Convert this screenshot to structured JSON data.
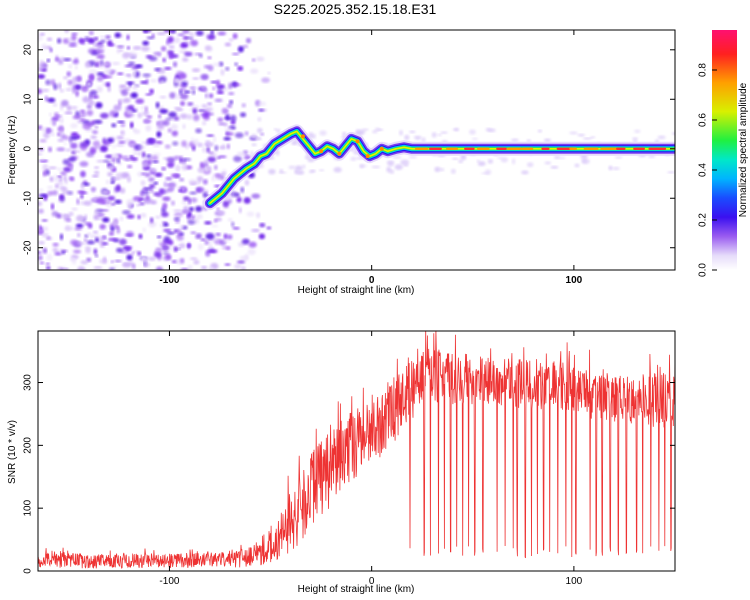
{
  "title": "S225.2025.352.15.18.E31",
  "colors": {
    "snr_line": "#ee3333",
    "noise_purple": "#8a44ee",
    "colormap": [
      "#f2eefc",
      "#cfb8f5",
      "#a070f0",
      "#5a10e0",
      "#1a1af0",
      "#00a8ff",
      "#00e0d8",
      "#30f040",
      "#e8f000",
      "#ff9a00",
      "#ff2020",
      "#ff1070"
    ]
  },
  "chart_data": [
    {
      "type": "heatmap",
      "name": "spectrogram",
      "xlabel": "Height of straight line (km)",
      "ylabel": "Frequency (Hz)",
      "xlim": [
        -165,
        150
      ],
      "ylim": [
        -24.5,
        24
      ],
      "xticks": [
        -100,
        0,
        100
      ],
      "yticks": [
        -20,
        -10,
        0,
        10,
        20
      ],
      "colorbar": {
        "label": "Normalized spectral amplitude",
        "range": [
          0,
          0.96
        ],
        "ticks": [
          0.0,
          0.2,
          0.4,
          0.6,
          0.8
        ]
      },
      "ridge": {
        "x": [
          -80,
          -74,
          -68,
          -62,
          -58,
          -55,
          -52,
          -48,
          -44,
          -40,
          -37,
          -34,
          -31,
          -28,
          -25,
          -22,
          -19,
          -16,
          -13,
          -10,
          -7,
          -4,
          -1,
          2,
          5,
          8,
          12,
          16,
          20,
          150
        ],
        "freq": [
          -11,
          -9,
          -6,
          -4,
          -3,
          -1.5,
          -1,
          1,
          2,
          3,
          3.5,
          2,
          0.5,
          -1,
          -0.5,
          0.5,
          0,
          -1,
          0.5,
          2,
          1.5,
          -0.5,
          -1.5,
          -1,
          0,
          -0.5,
          0,
          0.3,
          0,
          0
        ]
      }
    },
    {
      "type": "line",
      "name": "snr",
      "xlabel": "Height of straight line (km)",
      "ylabel": "SNR (10 * v/v)",
      "xlim": [
        -165,
        150
      ],
      "ylim": [
        0,
        382
      ],
      "xticks": [
        -100,
        0,
        100
      ],
      "yticks": [
        0,
        100,
        200,
        300
      ],
      "series": [
        {
          "name": "SNR",
          "x": [
            -165,
            -140,
            -110,
            -80,
            -60,
            -50,
            -42,
            -36,
            -30,
            -24,
            -18,
            -12,
            -6,
            0,
            5,
            10,
            15,
            20,
            25,
            30,
            40,
            50,
            60,
            70,
            80,
            90,
            100,
            110,
            120,
            130,
            140,
            150
          ],
          "mean": [
            18,
            16,
            16,
            17,
            22,
            40,
            70,
            95,
            130,
            150,
            170,
            195,
            210,
            215,
            230,
            250,
            270,
            295,
            310,
            312,
            305,
            300,
            305,
            300,
            295,
            300,
            290,
            280,
            275,
            270,
            270,
            275
          ],
          "spread": [
            12,
            12,
            12,
            12,
            16,
            28,
            45,
            55,
            60,
            60,
            60,
            60,
            55,
            55,
            55,
            55,
            55,
            55,
            50,
            45,
            40,
            40,
            40,
            40,
            40,
            40,
            40,
            40,
            40,
            40,
            45,
            45
          ]
        }
      ],
      "dropouts": [
        19,
        26,
        29,
        33,
        36,
        39,
        42,
        45,
        48,
        51,
        55,
        62,
        66,
        70,
        72,
        76,
        79,
        82,
        85,
        88,
        92,
        96,
        99,
        101,
        108,
        111,
        114,
        118,
        122,
        126,
        131,
        134,
        138,
        142,
        145,
        148
      ]
    }
  ]
}
